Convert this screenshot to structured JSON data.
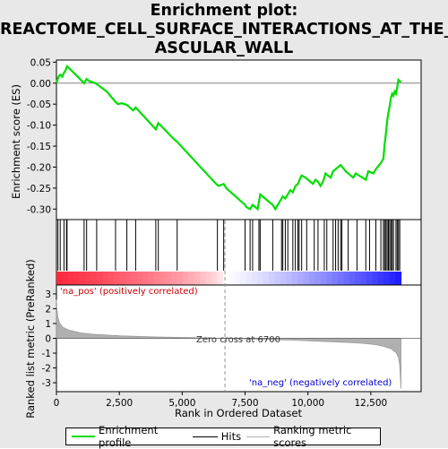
{
  "title": "Enrichment plot: REACTOME_CELL_SURFACE_INTERACTIONS_AT_THE_VASCULAR_WALL",
  "title_lines": [
    "Enrichment plot:",
    "REACTOME_CELL_SURFACE_INTERACTIONS_AT_THE_V",
    "ASCULAR_WALL"
  ],
  "colors": {
    "enrichment_line": "#00dd00",
    "hits": "#000000",
    "ranking_fill": "#b0b0b0",
    "pos_label": "#cc0000",
    "neg_label": "#0000cc",
    "zero_cross_line": "#909090"
  },
  "chart_data": [
    {
      "type": "line",
      "name": "enrichment-profile",
      "ylabel": "Enrichment score (ES)",
      "xlim": [
        0,
        14500
      ],
      "ylim": [
        -0.325,
        0.055
      ],
      "yticks": [
        0.05,
        0.0,
        -0.05,
        -0.1,
        -0.15,
        -0.2,
        -0.25,
        -0.3
      ],
      "ytick_labels": [
        "0.05",
        "0.00",
        "-0.05",
        "-0.10",
        "-0.15",
        "-0.20",
        "-0.25",
        "-0.30"
      ],
      "grid": false,
      "x": [
        0,
        80,
        150,
        230,
        300,
        360,
        420,
        600,
        1100,
        1200,
        1300,
        1550,
        2000,
        2350,
        2450,
        2600,
        2800,
        3050,
        3150,
        3950,
        4050,
        4700,
        4800,
        6350,
        6450,
        6650,
        6750,
        7500,
        7550,
        7700,
        7800,
        8000,
        8100,
        8600,
        8700,
        8900,
        9000,
        9100,
        9300,
        9400,
        9500,
        9600,
        9700,
        9750,
        9900,
        10000,
        10200,
        10300,
        10400,
        10500,
        10600,
        10700,
        10900,
        11000,
        11200,
        11300,
        11500,
        11800,
        11900,
        12300,
        12400,
        12600,
        12700,
        12900,
        13000,
        13050,
        13100,
        13150,
        13200,
        13250,
        13300,
        13350,
        13400,
        13450,
        13500,
        13550,
        13600,
        13700
      ],
      "y": [
        0.0,
        0.015,
        0.02,
        0.015,
        0.025,
        0.03,
        0.04,
        0.03,
        0.0,
        0.01,
        0.005,
        0.0,
        -0.02,
        -0.045,
        -0.05,
        -0.048,
        -0.052,
        -0.065,
        -0.058,
        -0.11,
        -0.095,
        -0.135,
        -0.14,
        -0.24,
        -0.245,
        -0.24,
        -0.25,
        -0.29,
        -0.295,
        -0.3,
        -0.29,
        -0.3,
        -0.265,
        -0.29,
        -0.3,
        -0.28,
        -0.27,
        -0.275,
        -0.255,
        -0.26,
        -0.245,
        -0.24,
        -0.225,
        -0.22,
        -0.225,
        -0.23,
        -0.24,
        -0.23,
        -0.235,
        -0.245,
        -0.235,
        -0.215,
        -0.225,
        -0.21,
        -0.2,
        -0.195,
        -0.21,
        -0.225,
        -0.215,
        -0.23,
        -0.21,
        -0.215,
        -0.205,
        -0.19,
        -0.18,
        -0.145,
        -0.12,
        -0.09,
        -0.07,
        -0.055,
        -0.035,
        -0.025,
        -0.03,
        -0.02,
        -0.025,
        -0.01,
        0.008,
        0.002
      ]
    },
    {
      "type": "hits",
      "name": "hits",
      "positions": [
        60,
        150,
        300,
        400,
        420,
        1100,
        1200,
        1600,
        2350,
        2800,
        3150,
        3950,
        4050,
        4800,
        6400,
        6650,
        7500,
        7700,
        7800,
        8050,
        8100,
        8600,
        8950,
        9000,
        9100,
        9200,
        9400,
        9500,
        9600,
        9650,
        9750,
        9950,
        10250,
        10400,
        10650,
        10750,
        11000,
        11100,
        11200,
        11300,
        11350,
        11600,
        11950,
        12300,
        12450,
        12700,
        12900,
        13000,
        13050,
        13100,
        13150,
        13200,
        13250,
        13300,
        13350,
        13400,
        13500,
        13550,
        13600,
        13650
      ]
    },
    {
      "type": "area",
      "name": "ranking-metric",
      "ylabel": "Ranked list metric (PreRanked)",
      "xlabel": "Rank in Ordered Dataset",
      "xlim": [
        0,
        14500
      ],
      "ylim": [
        -3.6,
        3.6
      ],
      "xticks": [
        0,
        2500,
        5000,
        7500,
        10000,
        12500
      ],
      "xtick_labels": [
        "0",
        "2,500",
        "5,000",
        "7,500",
        "10,000",
        "12,500"
      ],
      "yticks": [
        3,
        2,
        1,
        0,
        -1,
        -2,
        -3
      ],
      "ytick_labels": [
        "3",
        "2",
        "1",
        "0",
        "-1",
        "-2",
        "-3"
      ],
      "x": [
        0,
        20,
        60,
        120,
        250,
        500,
        1000,
        1500,
        2500,
        4000,
        5500,
        6700,
        8000,
        9500,
        10500,
        11500,
        12200,
        12700,
        13000,
        13300,
        13500,
        13600,
        13650,
        13700
      ],
      "y": [
        2.6,
        1.9,
        1.4,
        1.05,
        0.75,
        0.55,
        0.35,
        0.27,
        0.17,
        0.09,
        0.04,
        0.0,
        -0.06,
        -0.13,
        -0.2,
        -0.27,
        -0.34,
        -0.43,
        -0.53,
        -0.7,
        -0.95,
        -1.3,
        -1.8,
        -3.4
      ],
      "zero_cross_rank": 6700,
      "zero_cross_label": "Zero cross at 6700",
      "pos_label": "'na_pos' (positively correlated)",
      "neg_label": "'na_neg' (negatively correlated)"
    }
  ],
  "legend": {
    "enrichment_profile": "Enrichment profile",
    "hits": "Hits",
    "ranking_metric": "Ranking metric scores"
  }
}
